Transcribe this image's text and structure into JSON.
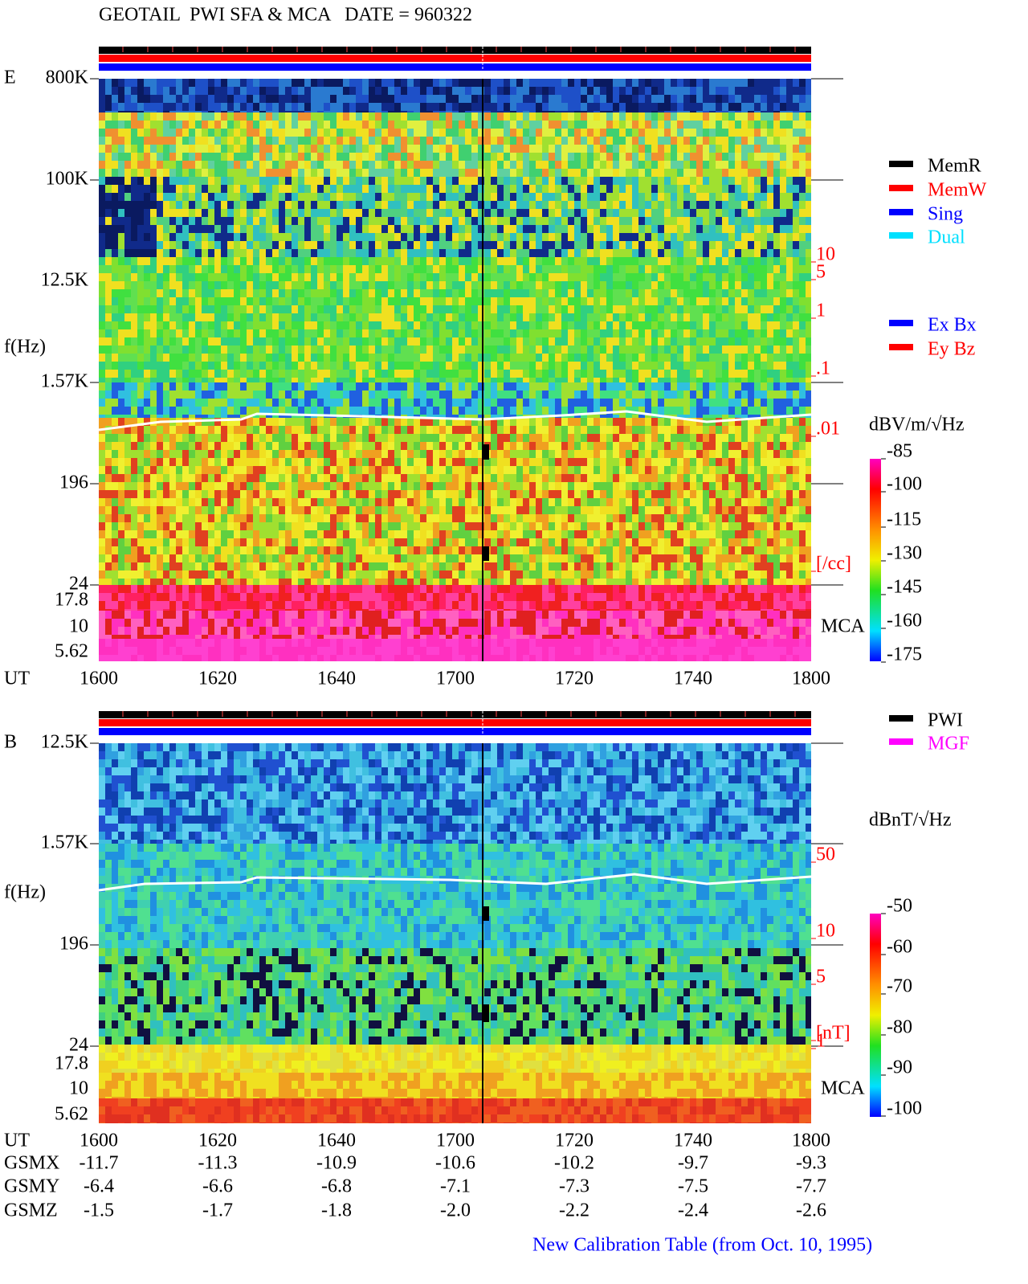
{
  "header": {
    "title": "GEOTAIL  PWI SFA & MCA   DATE = 960322"
  },
  "panels": [
    {
      "label": "E",
      "y_labels": [
        "800K",
        "100K",
        "12.5K",
        "f(Hz)",
        "1.57K",
        "196",
        "24",
        "17.8",
        "10",
        "5.62"
      ],
      "x_axis_label": "UT",
      "x_labels": [
        "1600",
        "1620",
        "1640",
        "1700",
        "1720",
        "1740",
        "1800"
      ],
      "right_labels": [
        "10",
        "5",
        "1",
        ".1",
        ".01",
        "[/cc]"
      ],
      "mca": "MCA",
      "unit": "dBV/m/√Hz",
      "colorbar_labels": [
        "-85",
        "-100",
        "-115",
        "-130",
        "-145",
        "-160",
        "-175"
      ]
    },
    {
      "label": "B",
      "y_labels": [
        "12.5K",
        "1.57K",
        "f(Hz)",
        "196",
        "24",
        "17.8",
        "10",
        "5.62"
      ],
      "x_axis_label": "UT",
      "x_labels": [
        "1600",
        "1620",
        "1640",
        "1700",
        "1720",
        "1740",
        "1800"
      ],
      "right_labels": [
        "50",
        "10",
        "5",
        "1",
        "[nT]"
      ],
      "mca": "MCA",
      "unit": "dBnT/√Hz",
      "colorbar_labels": [
        "-50",
        "-60",
        "-70",
        "-80",
        "-90",
        "-100"
      ]
    }
  ],
  "legend_mode": [
    {
      "text": "MemR",
      "color": "#000000"
    },
    {
      "text": "MemW",
      "color": "#ff0000"
    },
    {
      "text": "Sing",
      "color": "#0000ff"
    },
    {
      "text": "Dual",
      "color": "#00e0ff"
    }
  ],
  "legend_component": [
    {
      "text": "Ex Bx",
      "color": "#0000ff"
    },
    {
      "text": "Ey Bz",
      "color": "#ff0000"
    }
  ],
  "legend_source": [
    {
      "text": "PWI",
      "color": "#000000"
    },
    {
      "text": "MGF",
      "color": "#ff00ff"
    }
  ],
  "orbit": {
    "rows": [
      {
        "label": "GSMX",
        "values": [
          "-11.7",
          "-11.3",
          "-10.9",
          "-10.6",
          "-10.2",
          "-9.7",
          "-9.3"
        ]
      },
      {
        "label": "GSMY",
        "values": [
          "-6.4",
          "-6.6",
          "-6.8",
          "-7.1",
          "-7.3",
          "-7.5",
          "-7.7"
        ]
      },
      {
        "label": "GSMZ",
        "values": [
          "-1.5",
          "-1.7",
          "-1.8",
          "-2.0",
          "-2.2",
          "-2.4",
          "-2.6"
        ]
      }
    ]
  },
  "footer": "New Calibration Table (from Oct. 10, 1995)"
}
